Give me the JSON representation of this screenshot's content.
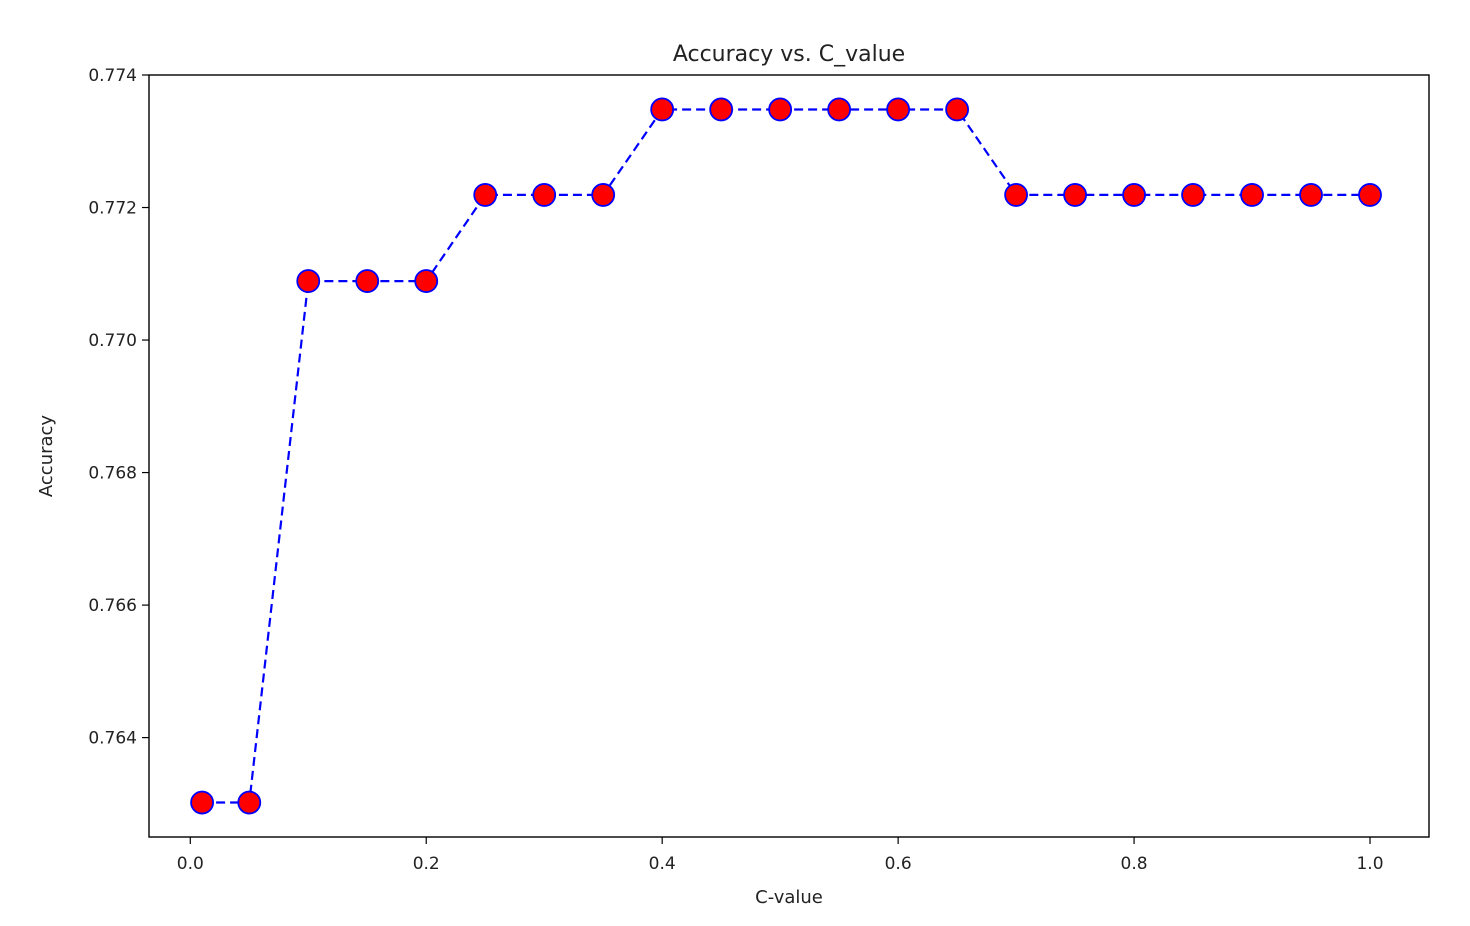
{
  "chart_data": {
    "type": "line",
    "title": "Accuracy vs. C_value",
    "xlabel": "C-value",
    "ylabel": "Accuracy",
    "xlim": [
      -0.035,
      1.05
    ],
    "ylim": [
      0.7625,
      0.774
    ],
    "grid": false,
    "x_ticks": [
      "0.0",
      "0.2",
      "0.4",
      "0.6",
      "0.8",
      "1.0"
    ],
    "y_ticks": [
      "0.764",
      "0.766",
      "0.768",
      "0.770",
      "0.772",
      "0.774"
    ],
    "series": [
      {
        "line_color": "#0000ff",
        "line_style": "dashed",
        "marker": "circle",
        "marker_face_color": "#ff0000",
        "marker_edge_color": "#0000ff",
        "x": [
          0.01,
          0.05,
          0.1,
          0.15,
          0.2,
          0.25,
          0.3,
          0.35,
          0.4,
          0.45,
          0.5,
          0.55,
          0.6,
          0.65,
          0.7,
          0.75,
          0.8,
          0.85,
          0.9,
          0.95,
          1.0
        ],
        "y": [
          0.76302,
          0.76302,
          0.77089,
          0.77089,
          0.77089,
          0.77219,
          0.77219,
          0.77219,
          0.77348,
          0.77348,
          0.77348,
          0.77348,
          0.77348,
          0.77348,
          0.77219,
          0.77219,
          0.77219,
          0.77219,
          0.77219,
          0.77219,
          0.77219
        ]
      }
    ]
  }
}
